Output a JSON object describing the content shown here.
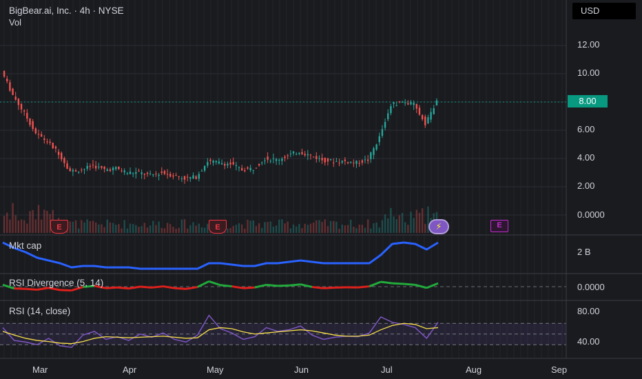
{
  "header": {
    "symbol_line": "BigBear.ai, Inc. · 4h · NYSE",
    "volume_label": "Vol",
    "currency": "USD"
  },
  "last_price_label": "8.00",
  "price_axis": [
    "12.00",
    "10.00",
    "8.00",
    "6.00",
    "4.00",
    "2.00",
    "0.0000"
  ],
  "mktcap_axis": [
    "2 B"
  ],
  "rsidiv_axis": [
    "0.0000"
  ],
  "rsi_axis": [
    "80.00",
    "40.00"
  ],
  "time_axis": [
    "Mar",
    "Apr",
    "May",
    "Jun",
    "Jul",
    "Aug",
    "Sep"
  ],
  "panes": {
    "mktcap": "Mkt cap",
    "rsidiv": "RSI Divergence (5, 14)",
    "rsi": "RSI (14, close)"
  },
  "events": {
    "earnings_label": "E",
    "flash_glyph": "⚡"
  },
  "colors": {
    "up": "#26a69a",
    "down": "#ef5350",
    "mktcap": "#2962ff",
    "rsi": "#7e57c2",
    "rsi_ma": "#f7e04a",
    "div_up": "#22ab3b",
    "div_down": "#e0201b",
    "price_tag": "#089981"
  },
  "chart_data": [
    {
      "type": "line",
      "title": "BigBear.ai, Inc. · 4h · NYSE",
      "ylim": [
        0,
        13
      ],
      "x": [
        "2025-02-18",
        "2025-02-22",
        "2025-02-26",
        "2025-03-02",
        "2025-03-06",
        "2025-03-10",
        "2025-03-14",
        "2025-03-18",
        "2025-03-22",
        "2025-03-26",
        "2025-03-30",
        "2025-04-03",
        "2025-04-07",
        "2025-04-11",
        "2025-04-15",
        "2025-04-19",
        "2025-04-23",
        "2025-04-27",
        "2025-05-01",
        "2025-05-05",
        "2025-05-09",
        "2025-05-13",
        "2025-05-17",
        "2025-05-21",
        "2025-05-25",
        "2025-05-29",
        "2025-06-02",
        "2025-06-06",
        "2025-06-10",
        "2025-06-14",
        "2025-06-18",
        "2025-06-22",
        "2025-06-26",
        "2025-06-30",
        "2025-07-04",
        "2025-07-08",
        "2025-07-12",
        "2025-07-16",
        "2025-07-20"
      ],
      "series": [
        {
          "values": [
            10.2,
            8.5,
            7.2,
            5.8,
            5.2,
            4.4,
            3.1,
            3.2,
            3.5,
            3.2,
            3.3,
            3.0,
            3.0,
            2.8,
            3.0,
            2.8,
            2.6,
            2.7,
            3.8,
            3.7,
            3.6,
            3.2,
            3.3,
            4.0,
            3.9,
            4.2,
            4.5,
            4.2,
            3.9,
            3.8,
            3.8,
            3.7,
            3.9,
            5.5,
            7.8,
            8.0,
            7.8,
            6.5,
            8.0
          ]
        }
      ]
    },
    {
      "type": "line",
      "title": "Mkt cap",
      "series": [
        {
          "name": "Mkt cap",
          "values": [
            3.0,
            2.6,
            2.3,
            1.9,
            1.7,
            1.5,
            1.2,
            1.3,
            1.3,
            1.2,
            1.2,
            1.2,
            1.1,
            1.1,
            1.1,
            1.1,
            1.1,
            1.1,
            1.5,
            1.5,
            1.4,
            1.3,
            1.3,
            1.5,
            1.5,
            1.6,
            1.7,
            1.6,
            1.5,
            1.5,
            1.5,
            1.5,
            1.5,
            2.1,
            2.9,
            3.0,
            2.9,
            2.5,
            3.0
          ]
        }
      ]
    },
    {
      "type": "line",
      "title": "RSI (14, close)",
      "ylim": [
        20,
        100
      ],
      "series": [
        {
          "name": "RSI",
          "values": [
            62,
            38,
            35,
            30,
            42,
            28,
            25,
            48,
            55,
            40,
            45,
            38,
            50,
            44,
            52,
            40,
            35,
            48,
            85,
            60,
            52,
            40,
            45,
            62,
            55,
            58,
            65,
            48,
            40,
            44,
            46,
            45,
            52,
            82,
            72,
            68,
            62,
            42,
            72
          ]
        },
        {
          "name": "RSI MA",
          "values": [
            55,
            48,
            42,
            38,
            36,
            33,
            32,
            36,
            42,
            45,
            44,
            43,
            44,
            45,
            46,
            44,
            42,
            43,
            58,
            62,
            60,
            54,
            50,
            52,
            54,
            56,
            58,
            56,
            52,
            48,
            46,
            46,
            48,
            58,
            66,
            70,
            68,
            60,
            62
          ]
        }
      ]
    }
  ]
}
